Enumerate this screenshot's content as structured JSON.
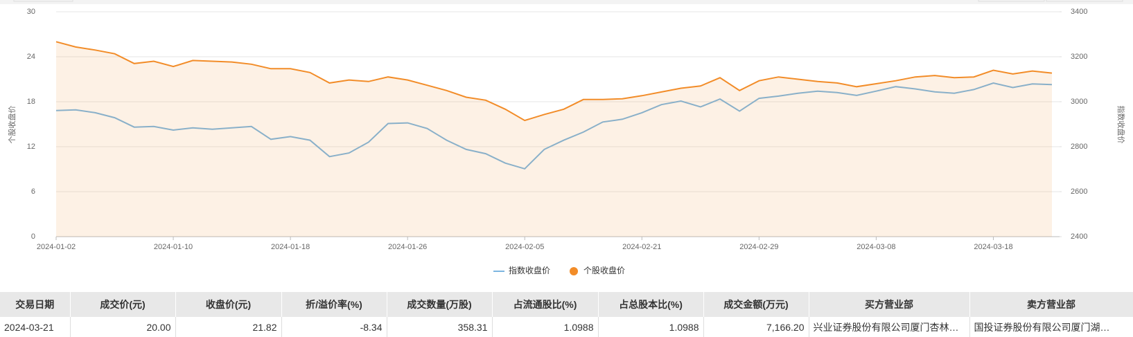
{
  "chart_data": {
    "type": "line",
    "categories": [
      "2024-01-02",
      null,
      null,
      null,
      null,
      null,
      "2024-01-10",
      null,
      null,
      null,
      null,
      null,
      "2024-01-18",
      null,
      null,
      null,
      null,
      null,
      "2024-01-26",
      null,
      null,
      null,
      null,
      null,
      "2024-02-05",
      null,
      null,
      null,
      null,
      null,
      "2024-02-21",
      null,
      null,
      null,
      null,
      null,
      "2024-02-29",
      null,
      null,
      null,
      null,
      null,
      "2024-03-08",
      null,
      null,
      null,
      null,
      null,
      "2024-03-18",
      null,
      null,
      null
    ],
    "y_label": "个股收盘价",
    "y2_label": "指数收盘价",
    "ylim": [
      0,
      30
    ],
    "yticks": [
      0,
      6,
      12,
      18,
      24,
      30
    ],
    "y2lim": [
      2400,
      3400
    ],
    "y2ticks": [
      2400,
      2600,
      2800,
      3000,
      3200,
      3400
    ],
    "grid": true,
    "legend": "bottom",
    "series": [
      {
        "name": "指数收盘价",
        "color": "#7cb5e0",
        "axis": "y2",
        "values": [
          2961,
          2964,
          2951,
          2929,
          2887,
          2890,
          2874,
          2884,
          2878,
          2884,
          2890,
          2833,
          2845,
          2829,
          2756,
          2772,
          2820,
          2903,
          2906,
          2881,
          2829,
          2788,
          2769,
          2727,
          2702,
          2788,
          2829,
          2865,
          2910,
          2922,
          2951,
          2987,
          3003,
          2977,
          3012,
          2958,
          3015,
          3025,
          3038,
          3047,
          3041,
          3028,
          3047,
          3067,
          3057,
          3044,
          3038,
          3054,
          3083,
          3063,
          3079,
          3076
        ]
      },
      {
        "name": "个股收盘价",
        "color": "#f28c28",
        "area": true,
        "values": [
          26.0,
          25.3,
          24.9,
          24.4,
          23.1,
          23.4,
          22.7,
          23.5,
          23.4,
          23.3,
          23.0,
          22.4,
          22.4,
          21.9,
          20.5,
          20.9,
          20.7,
          21.3,
          20.9,
          20.2,
          19.5,
          18.6,
          18.2,
          17.0,
          15.5,
          16.3,
          17.0,
          18.3,
          18.3,
          18.4,
          18.8,
          19.3,
          19.8,
          20.1,
          21.2,
          19.5,
          20.8,
          21.3,
          21.0,
          20.7,
          20.5,
          20.0,
          20.4,
          20.8,
          21.3,
          21.5,
          21.2,
          21.3,
          22.2,
          21.7,
          22.1,
          21.82
        ]
      }
    ]
  },
  "table": {
    "headers": [
      "交易日期",
      "成交价(元)",
      "收盘价(元)",
      "折/溢价率(%)",
      "成交数量(万股)",
      "占流通股比(%)",
      "占总股本比(%)",
      "成交金额(万元)",
      "买方营业部",
      "卖方营业部"
    ],
    "rows": [
      [
        "2024-03-21",
        "20.00",
        "21.82",
        "-8.34",
        "358.31",
        "1.0988",
        "1.0988",
        "7,166.20",
        "兴业证券股份有限公司厦门杏林…",
        "国投证券股份有限公司厦门湖…"
      ]
    ]
  }
}
